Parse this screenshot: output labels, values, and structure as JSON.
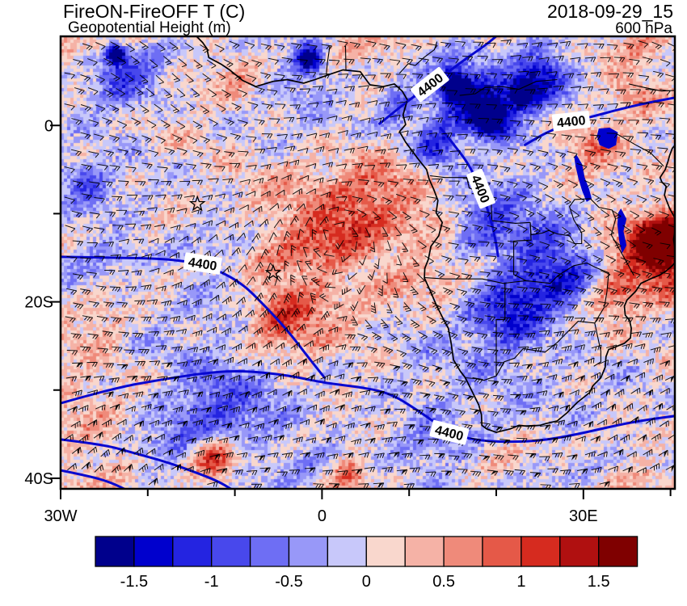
{
  "header": {
    "title": "FireON-FireOFF T (C)",
    "subtitle": "Geopotential Height (m)",
    "datetime": "2018-09-29_15",
    "level": "600 hPa"
  },
  "axes": {
    "x_label_ticks": [
      {
        "label": "30W",
        "lon": -30
      },
      {
        "label": "0",
        "lon": 0
      },
      {
        "label": "30E",
        "lon": 30
      }
    ],
    "y_label_ticks": [
      {
        "label": "0",
        "lat": 0
      },
      {
        "label": "20S",
        "lat": -20
      },
      {
        "label": "40S",
        "lat": -40
      }
    ],
    "x_tick_lons": [
      -30,
      -20,
      -10,
      0,
      10,
      20,
      30,
      40
    ],
    "y_tick_lats": [
      0,
      -10,
      -20,
      -30,
      -40
    ]
  },
  "colorbar": {
    "levels": [
      -1.75,
      -1.5,
      -1.25,
      -1.0,
      -0.75,
      -0.5,
      -0.25,
      0,
      0.25,
      0.5,
      0.75,
      1.0,
      1.25,
      1.5,
      1.75
    ],
    "colors": [
      "#00008c",
      "#0000cd",
      "#2424e1",
      "#4848ec",
      "#6e6ef4",
      "#9898f8",
      "#c8c8fa",
      "#f9d7cd",
      "#f5b2a6",
      "#ef8a7a",
      "#e55948",
      "#d62b1f",
      "#b01010",
      "#7f0000"
    ],
    "tick_labels": [
      "-1.5",
      "-1",
      "-0.5",
      "0",
      "0.5",
      "1",
      "1.5"
    ]
  },
  "chart_data": {
    "type": "heatmap",
    "subtype": "filled-contour-map-with-wind-barbs",
    "title": "FireON-FireOFF T (C)",
    "colorbar_units": "C",
    "overlay_contour_field": "Geopotential Height (m)",
    "contour_labeled_value": "4400",
    "pressure_level": "600 hPa",
    "valid_time": "2018-09-29_15",
    "wind_barbs_plotted": true,
    "lon_range_deg": [
      -30,
      40.5
    ],
    "lat_range_deg": [
      -41.2,
      10.1
    ],
    "fill_levels": [
      -1.75,
      -1.5,
      -1.25,
      -1.0,
      -0.75,
      -0.5,
      -0.25,
      0,
      0.25,
      0.5,
      0.75,
      1.0,
      1.25,
      1.5,
      1.75
    ],
    "fill_colors": [
      "#00008c",
      "#0000cd",
      "#2424e1",
      "#4848ec",
      "#6e6ef4",
      "#9898f8",
      "#c8c8fa",
      "#f9d7cd",
      "#f5b2a6",
      "#ef8a7a",
      "#e55948",
      "#d62b1f",
      "#b01010",
      "#7f0000"
    ],
    "contour_color": "#0808d0",
    "lake_color": "#0000cd",
    "base_value": 0.13,
    "shading_blobs": [
      [
        0.44,
        0.48,
        0.2,
        0.55
      ],
      [
        0.47,
        0.4,
        0.09,
        0.55
      ],
      [
        0.36,
        0.63,
        0.07,
        0.75
      ],
      [
        0.52,
        0.33,
        0.07,
        0.45
      ],
      [
        0.97,
        0.47,
        0.08,
        1.9
      ],
      [
        0.985,
        0.45,
        0.04,
        1.2
      ],
      [
        0.9,
        0.56,
        0.06,
        0.9
      ],
      [
        0.87,
        0.25,
        0.07,
        0.65
      ],
      [
        0.93,
        0.13,
        0.05,
        0.5
      ],
      [
        0.25,
        0.93,
        0.05,
        1.3
      ],
      [
        0.47,
        0.97,
        0.04,
        0.8
      ],
      [
        0.07,
        0.63,
        0.05,
        0.5
      ],
      [
        0.3,
        0.1,
        0.05,
        0.35
      ],
      [
        0.68,
        0.14,
        0.09,
        -1.7
      ],
      [
        0.78,
        0.09,
        0.06,
        -1.5
      ],
      [
        0.61,
        0.24,
        0.05,
        -1.2
      ],
      [
        0.55,
        0.16,
        0.05,
        -0.9
      ],
      [
        0.64,
        0.11,
        0.03,
        -2.0
      ],
      [
        0.7,
        0.18,
        0.035,
        -2.0
      ],
      [
        0.75,
        0.13,
        0.03,
        -1.8
      ],
      [
        0.405,
        0.05,
        0.03,
        -2.0
      ],
      [
        0.81,
        0.52,
        0.1,
        -1.4
      ],
      [
        0.73,
        0.62,
        0.08,
        -0.9
      ],
      [
        0.68,
        0.4,
        0.07,
        -0.8
      ],
      [
        0.25,
        0.85,
        0.12,
        -0.9
      ],
      [
        0.1,
        0.1,
        0.08,
        -0.9
      ],
      [
        0.09,
        0.04,
        0.02,
        -2.2
      ],
      [
        0.04,
        0.32,
        0.05,
        -0.6
      ],
      [
        0.15,
        0.47,
        0.22,
        -0.35
      ],
      [
        0.55,
        0.82,
        0.3,
        -0.38
      ],
      [
        0.92,
        0.78,
        0.13,
        -0.35
      ],
      [
        0.34,
        0.13,
        0.16,
        -0.3
      ],
      [
        0.75,
        0.33,
        0.1,
        -0.5
      ]
    ],
    "station_markers": [
      {
        "lon": -14.3,
        "lat": -8.9
      },
      {
        "lon": -5.6,
        "lat": -16.7
      }
    ],
    "coastline": [
      [
        -14.4,
        10.1
      ],
      [
        -13.7,
        9.4
      ],
      [
        -13.2,
        8.7
      ],
      [
        -13.0,
        7.7
      ],
      [
        -11.5,
        6.9
      ],
      [
        -10.6,
        6.3
      ],
      [
        -9.1,
        5.1
      ],
      [
        -7.6,
        4.4
      ],
      [
        -5.6,
        5.0
      ],
      [
        -4.0,
        5.2
      ],
      [
        -2.1,
        4.8
      ],
      [
        -0.8,
        5.2
      ],
      [
        0.9,
        5.8
      ],
      [
        2.4,
        6.3
      ],
      [
        4.4,
        6.1
      ],
      [
        5.5,
        4.6
      ],
      [
        7.0,
        4.4
      ],
      [
        8.3,
        4.7
      ],
      [
        9.2,
        3.9
      ],
      [
        9.8,
        2.9
      ],
      [
        9.3,
        1.2
      ],
      [
        9.6,
        0.1
      ],
      [
        8.9,
        -0.7
      ],
      [
        9.6,
        -1.9
      ],
      [
        11.1,
        -3.9
      ],
      [
        12.0,
        -5.0
      ],
      [
        12.3,
        -6.1
      ],
      [
        12.8,
        -7.2
      ],
      [
        13.3,
        -8.5
      ],
      [
        13.1,
        -9.9
      ],
      [
        13.8,
        -11.0
      ],
      [
        13.4,
        -12.5
      ],
      [
        12.5,
        -13.7
      ],
      [
        12.2,
        -15.2
      ],
      [
        11.8,
        -16.2
      ],
      [
        11.75,
        -17.3
      ],
      [
        12.4,
        -18.7
      ],
      [
        13.1,
        -20.3
      ],
      [
        13.9,
        -21.9
      ],
      [
        14.5,
        -23.0
      ],
      [
        14.8,
        -24.6
      ],
      [
        15.1,
        -26.6
      ],
      [
        15.9,
        -27.9
      ],
      [
        16.45,
        -28.6
      ],
      [
        17.3,
        -30.3
      ],
      [
        18.0,
        -31.7
      ],
      [
        18.3,
        -32.8
      ],
      [
        18.35,
        -34.0
      ],
      [
        18.9,
        -34.4
      ],
      [
        20.0,
        -34.8
      ],
      [
        21.6,
        -34.4
      ],
      [
        22.6,
        -34.0
      ],
      [
        23.6,
        -34.1
      ],
      [
        25.0,
        -34.0
      ],
      [
        25.7,
        -33.8
      ],
      [
        27.0,
        -33.5
      ],
      [
        28.1,
        -32.6
      ],
      [
        29.3,
        -31.4
      ],
      [
        30.7,
        -30.3
      ],
      [
        31.1,
        -29.5
      ],
      [
        32.0,
        -28.6
      ],
      [
        32.5,
        -27.4
      ],
      [
        32.6,
        -26.2
      ],
      [
        32.9,
        -25.4
      ],
      [
        33.7,
        -25.1
      ],
      [
        34.7,
        -24.7
      ],
      [
        35.4,
        -24.1
      ],
      [
        35.5,
        -23.0
      ],
      [
        35.3,
        -22.1
      ],
      [
        34.8,
        -21.5
      ],
      [
        34.7,
        -20.5
      ],
      [
        35.0,
        -19.8
      ],
      [
        36.0,
        -18.8
      ],
      [
        36.6,
        -17.9
      ],
      [
        37.9,
        -17.3
      ],
      [
        38.7,
        -17.0
      ],
      [
        39.5,
        -16.5
      ],
      [
        40.2,
        -15.9
      ],
      [
        40.7,
        -15.3
      ],
      [
        40.55,
        -14.3
      ],
      [
        40.35,
        -12.9
      ],
      [
        40.6,
        -11.4
      ],
      [
        40.45,
        -10.4
      ],
      [
        39.9,
        -9.4
      ],
      [
        39.3,
        -7.9
      ],
      [
        39.5,
        -6.9
      ],
      [
        39.0,
        -6.4
      ],
      [
        38.8,
        -5.9
      ],
      [
        39.4,
        -5.0
      ],
      [
        39.7,
        -4.1
      ],
      [
        39.9,
        -3.4
      ],
      [
        40.2,
        -2.6
      ],
      [
        40.8,
        -1.9
      ]
    ],
    "borders": [
      [
        [
          15.8,
          3.4
        ],
        [
          17.6,
          3.6
        ],
        [
          18.7,
          4.3
        ],
        [
          20.7,
          4.4
        ],
        [
          22.6,
          4.1
        ],
        [
          24.6,
          5.0
        ],
        [
          27.0,
          5.2
        ]
      ],
      [
        [
          8.9,
          5.9
        ],
        [
          9.9,
          7.0
        ],
        [
          10.7,
          6.8
        ],
        [
          11.7,
          7.7
        ],
        [
          12.9,
          8.6
        ],
        [
          13.2,
          9.5
        ]
      ],
      [
        [
          0.5,
          5.8
        ],
        [
          0.6,
          7.0
        ],
        [
          0.9,
          9.0
        ]
      ],
      [
        [
          2.75,
          6.3
        ],
        [
          2.7,
          9.0
        ]
      ],
      [
        [
          12.4,
          -5.7
        ],
        [
          14.1,
          -5.9
        ],
        [
          16.6,
          -5.9
        ],
        [
          16.9,
          -7.1
        ],
        [
          19.4,
          -7.9
        ],
        [
          19.5,
          -10.8
        ],
        [
          22.2,
          -11.1
        ],
        [
          23.9,
          -11.0
        ]
      ],
      [
        [
          23.9,
          -11.0
        ],
        [
          24.0,
          -12.4
        ],
        [
          25.3,
          -12.2
        ],
        [
          26.0,
          -11.9
        ],
        [
          27.0,
          -12.3
        ],
        [
          28.4,
          -12.5
        ],
        [
          29.0,
          -13.4
        ],
        [
          29.8,
          -13.4
        ],
        [
          29.8,
          -12.2
        ],
        [
          28.9,
          -10.7
        ],
        [
          28.4,
          -9.2
        ],
        [
          29.0,
          -8.4
        ],
        [
          30.8,
          -8.3
        ]
      ],
      [
        [
          23.9,
          -11.0
        ],
        [
          24.0,
          -13.0
        ],
        [
          22.0,
          -13.1
        ],
        [
          22.0,
          -16.9
        ],
        [
          23.4,
          -17.6
        ]
      ],
      [
        [
          11.75,
          -17.25
        ],
        [
          14.1,
          -17.4
        ],
        [
          18.4,
          -17.4
        ],
        [
          20.8,
          -17.9
        ],
        [
          23.4,
          -17.6
        ],
        [
          25.3,
          -17.8
        ]
      ],
      [
        [
          21.0,
          -17.9
        ],
        [
          21.0,
          -22.0
        ],
        [
          20.0,
          -22.0
        ],
        [
          20.0,
          -28.4
        ]
      ],
      [
        [
          16.45,
          -28.6
        ],
        [
          17.5,
          -28.7
        ],
        [
          18.6,
          -28.9
        ],
        [
          20.0,
          -28.4
        ]
      ],
      [
        [
          20.0,
          -28.4
        ],
        [
          20.9,
          -26.8
        ],
        [
          22.1,
          -26.4
        ],
        [
          23.1,
          -25.3
        ],
        [
          25.6,
          -25.7
        ],
        [
          27.0,
          -24.6
        ],
        [
          28.0,
          -23.6
        ],
        [
          29.4,
          -22.2
        ],
        [
          31.3,
          -22.4
        ]
      ],
      [
        [
          31.3,
          -22.4
        ],
        [
          32.0,
          -25.6
        ],
        [
          32.0,
          -26.8
        ],
        [
          31.2,
          -27.3
        ]
      ],
      [
        [
          25.3,
          -17.8
        ],
        [
          26.2,
          -17.9
        ],
        [
          27.1,
          -17.0
        ],
        [
          28.9,
          -15.9
        ],
        [
          30.4,
          -15.6
        ],
        [
          31.4,
          -16.1
        ],
        [
          32.9,
          -16.7
        ],
        [
          32.7,
          -18.9
        ],
        [
          32.4,
          -20.6
        ],
        [
          31.3,
          -22.4
        ]
      ],
      [
        [
          30.8,
          -8.3
        ],
        [
          31.8,
          -9.3
        ],
        [
          33.3,
          -9.6
        ],
        [
          33.7,
          -10.6
        ],
        [
          33.2,
          -12.4
        ],
        [
          34.4,
          -14.5
        ],
        [
          35.3,
          -16.1
        ],
        [
          35.8,
          -17.0
        ]
      ],
      [
        [
          35.2,
          4.7
        ],
        [
          37.0,
          4.3
        ],
        [
          39.0,
          3.9
        ],
        [
          40.8,
          4.0
        ]
      ],
      [
        [
          33.9,
          -1.0
        ],
        [
          36.0,
          -2.2
        ],
        [
          37.7,
          -3.1
        ],
        [
          39.2,
          -4.6
        ]
      ]
    ],
    "lakes": [
      [
        [
          31.8,
          -0.4
        ],
        [
          33.0,
          -0.3
        ],
        [
          33.9,
          -0.8
        ],
        [
          33.7,
          -2.2
        ],
        [
          32.9,
          -2.6
        ],
        [
          31.9,
          -2.2
        ],
        [
          31.6,
          -1.2
        ]
      ],
      [
        [
          29.2,
          -3.4
        ],
        [
          29.8,
          -4.4
        ],
        [
          30.1,
          -5.9
        ],
        [
          30.6,
          -7.2
        ],
        [
          30.9,
          -8.3
        ],
        [
          30.4,
          -8.6
        ],
        [
          29.9,
          -7.4
        ],
        [
          29.5,
          -6.1
        ],
        [
          29.15,
          -4.6
        ],
        [
          29.0,
          -3.6
        ]
      ],
      [
        [
          34.3,
          -9.5
        ],
        [
          34.9,
          -10.6
        ],
        [
          34.55,
          -12.0
        ],
        [
          34.9,
          -13.6
        ],
        [
          34.45,
          -14.4
        ],
        [
          34.15,
          -13.0
        ],
        [
          33.95,
          -11.2
        ],
        [
          34.05,
          -9.9
        ]
      ]
    ],
    "contours_4400": [
      [
        [
          -30,
          -14.9
        ],
        [
          -24,
          -15.0
        ],
        [
          -18,
          -15.1
        ],
        [
          -13.7,
          -15.7
        ],
        [
          -9.5,
          -17.6
        ],
        [
          -6.5,
          -20.5
        ],
        [
          -3.9,
          -23.3
        ],
        [
          -1.8,
          -26.0
        ],
        [
          0.3,
          -28.6
        ]
      ],
      [
        [
          -30,
          -31.5
        ],
        [
          -24,
          -29.8
        ],
        [
          -18.4,
          -28.8
        ],
        [
          -13,
          -28.0
        ],
        [
          -9,
          -27.8
        ],
        [
          -4,
          -28.3
        ],
        [
          0.3,
          -29.2
        ],
        [
          4,
          -29.6
        ],
        [
          7.7,
          -30.3
        ],
        [
          11,
          -32.3
        ],
        [
          14.7,
          -34.9
        ],
        [
          18,
          -35.8
        ],
        [
          23.6,
          -35.9
        ],
        [
          28,
          -35.3
        ],
        [
          33.8,
          -34.0
        ],
        [
          37,
          -33.4
        ],
        [
          40.8,
          -32.9
        ]
      ],
      [
        [
          -30,
          -35.6
        ],
        [
          -25,
          -36.2
        ],
        [
          -22.1,
          -37.0
        ],
        [
          -18,
          -38.1
        ],
        [
          -14.6,
          -39.3
        ],
        [
          -12,
          -40.3
        ],
        [
          -10.3,
          -41.3
        ]
      ],
      [
        [
          -30,
          -39.1
        ],
        [
          -26.5,
          -39.8
        ],
        [
          -24.2,
          -40.5
        ],
        [
          -22.5,
          -41.3
        ]
      ],
      [
        [
          6.6,
          0.2
        ],
        [
          8.0,
          1.3
        ],
        [
          9.5,
          2.5
        ],
        [
          11.0,
          3.6
        ],
        [
          12.4,
          4.6
        ],
        [
          14.0,
          5.7
        ],
        [
          15.6,
          6.9
        ],
        [
          17.3,
          8.1
        ],
        [
          18.9,
          9.2
        ],
        [
          20.1,
          10.2
        ]
      ],
      [
        [
          23.3,
          -2.2
        ],
        [
          25.0,
          -1.2
        ],
        [
          26.5,
          -0.5
        ],
        [
          28.7,
          0.4
        ],
        [
          31.0,
          1.0
        ],
        [
          34.0,
          1.8
        ],
        [
          37.0,
          2.5
        ],
        [
          40.8,
          3.2
        ]
      ],
      [
        [
          13.6,
          -0.3
        ],
        [
          14.6,
          -1.5
        ],
        [
          15.3,
          -2.4
        ],
        [
          16.4,
          -3.8
        ],
        [
          17.2,
          -5.1
        ],
        [
          18.3,
          -7.4
        ],
        [
          19.2,
          -10.1
        ],
        [
          19.9,
          -12.8
        ],
        [
          20.2,
          -14.8
        ]
      ]
    ],
    "contour_labels": [
      {
        "text": "4400",
        "lon": 12.4,
        "lat": 4.6,
        "rot": -38
      },
      {
        "text": "4400",
        "lon": 28.6,
        "lat": 0.45,
        "rot": -6
      },
      {
        "text": "4400",
        "lon": 18.2,
        "lat": -7.2,
        "rot": 68
      },
      {
        "text": "4400",
        "lon": -13.7,
        "lat": -15.7,
        "rot": 9
      },
      {
        "text": "4400",
        "lon": 14.6,
        "lat": -34.85,
        "rot": 14
      }
    ]
  }
}
